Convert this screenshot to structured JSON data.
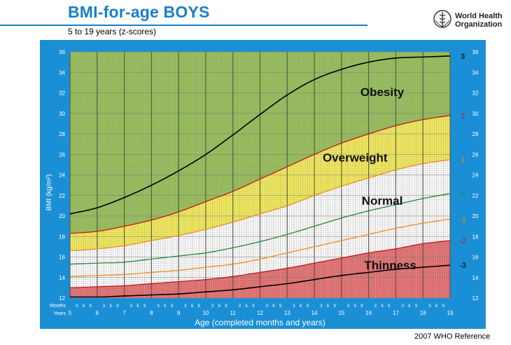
{
  "header": {
    "title": "BMI-for-age  BOYS",
    "subtitle": "5 to 19 years (z-scores)",
    "org_name_line1": "World Health",
    "org_name_line2": "Organization",
    "footer": "2007  WHO Reference"
  },
  "colors": {
    "frame": "#1a8fd6",
    "obesity": "#8dbb45",
    "overweight": "#f5ec45",
    "normal": "#ffffff",
    "thinness": "#e86060",
    "line_3": "#000000",
    "line_2": "#c0181c",
    "line_1": "#f08a1c",
    "line_0": "#1e8a3c",
    "line_m1": "#f08a1c",
    "line_m2": "#c0181c",
    "line_m3": "#000000",
    "title": "#1a7fc8"
  },
  "chart_data": {
    "type": "line",
    "title": "BMI-for-age  BOYS",
    "subtitle": "5 to 19 years (z-scores)",
    "xlabel": "Age (completed months and years)",
    "ylabel": "BMI (kg/m²)",
    "xlim": [
      5,
      19
    ],
    "ylim": [
      12,
      36
    ],
    "x_ticks": [
      "5",
      "6",
      "7",
      "8",
      "9",
      "10",
      "11",
      "12",
      "13",
      "14",
      "15",
      "16",
      "17",
      "18",
      "19"
    ],
    "y_ticks": [
      "12",
      "14",
      "16",
      "18",
      "20",
      "22",
      "24",
      "26",
      "28",
      "30",
      "32",
      "34",
      "36"
    ],
    "months_row_label": "Months",
    "years_row_label": "Years",
    "month_ticks": [
      "3",
      "6",
      "9"
    ],
    "x": [
      5,
      6,
      7,
      8,
      9,
      10,
      11,
      12,
      13,
      14,
      15,
      16,
      17,
      18,
      19
    ],
    "series": [
      {
        "name": "3",
        "color_key": "line_3",
        "values": [
          20.2,
          20.8,
          21.8,
          23.0,
          24.4,
          26.0,
          27.9,
          29.9,
          31.8,
          33.3,
          34.3,
          35.0,
          35.4,
          35.5,
          35.6
        ]
      },
      {
        "name": "2",
        "color_key": "line_2",
        "values": [
          18.3,
          18.5,
          19.0,
          19.6,
          20.4,
          21.4,
          22.4,
          23.6,
          24.8,
          26.0,
          27.1,
          28.0,
          28.8,
          29.4,
          29.8
        ]
      },
      {
        "name": "1",
        "color_key": "line_1",
        "values": [
          16.6,
          16.8,
          17.1,
          17.6,
          18.1,
          18.7,
          19.4,
          20.2,
          21.0,
          22.0,
          22.9,
          23.7,
          24.5,
          25.1,
          25.5
        ]
      },
      {
        "name": "0",
        "color_key": "line_0",
        "values": [
          15.3,
          15.4,
          15.5,
          15.8,
          16.1,
          16.4,
          16.9,
          17.5,
          18.2,
          19.0,
          19.8,
          20.5,
          21.1,
          21.7,
          22.2
        ]
      },
      {
        "name": "-1",
        "color_key": "line_m1",
        "values": [
          14.1,
          14.2,
          14.3,
          14.5,
          14.7,
          15.0,
          15.3,
          15.8,
          16.4,
          17.0,
          17.6,
          18.2,
          18.8,
          19.3,
          19.7
        ]
      },
      {
        "name": "-2",
        "color_key": "line_m2",
        "values": [
          13.0,
          13.1,
          13.2,
          13.4,
          13.6,
          13.8,
          14.1,
          14.5,
          14.9,
          15.4,
          15.9,
          16.4,
          16.8,
          17.3,
          17.6
        ]
      },
      {
        "name": "-3",
        "color_key": "line_m3",
        "values": [
          12.1,
          12.1,
          12.2,
          12.3,
          12.4,
          12.6,
          12.8,
          13.1,
          13.4,
          13.8,
          14.2,
          14.5,
          14.8,
          15.0,
          15.2
        ]
      }
    ],
    "zones": [
      {
        "label": "Obesity",
        "from_series": "2",
        "to_series": "top",
        "color_key": "obesity",
        "label_x": 16.5,
        "label_y": 31.7
      },
      {
        "label": "Overweight",
        "from_series": "1",
        "to_series": "2",
        "color_key": "overweight",
        "label_x": 15.5,
        "label_y": 25.3
      },
      {
        "label": "Normal",
        "from_series": "-2",
        "to_series": "1",
        "color_key": "normal",
        "label_x": 16.5,
        "label_y": 21.1
      },
      {
        "label": "Thinness",
        "from_series": "bottom",
        "to_series": "-2",
        "color_key": "thinness",
        "label_x": 16.8,
        "label_y": 14.8
      }
    ],
    "grid": true,
    "legend": "right-edge z-score labels"
  }
}
